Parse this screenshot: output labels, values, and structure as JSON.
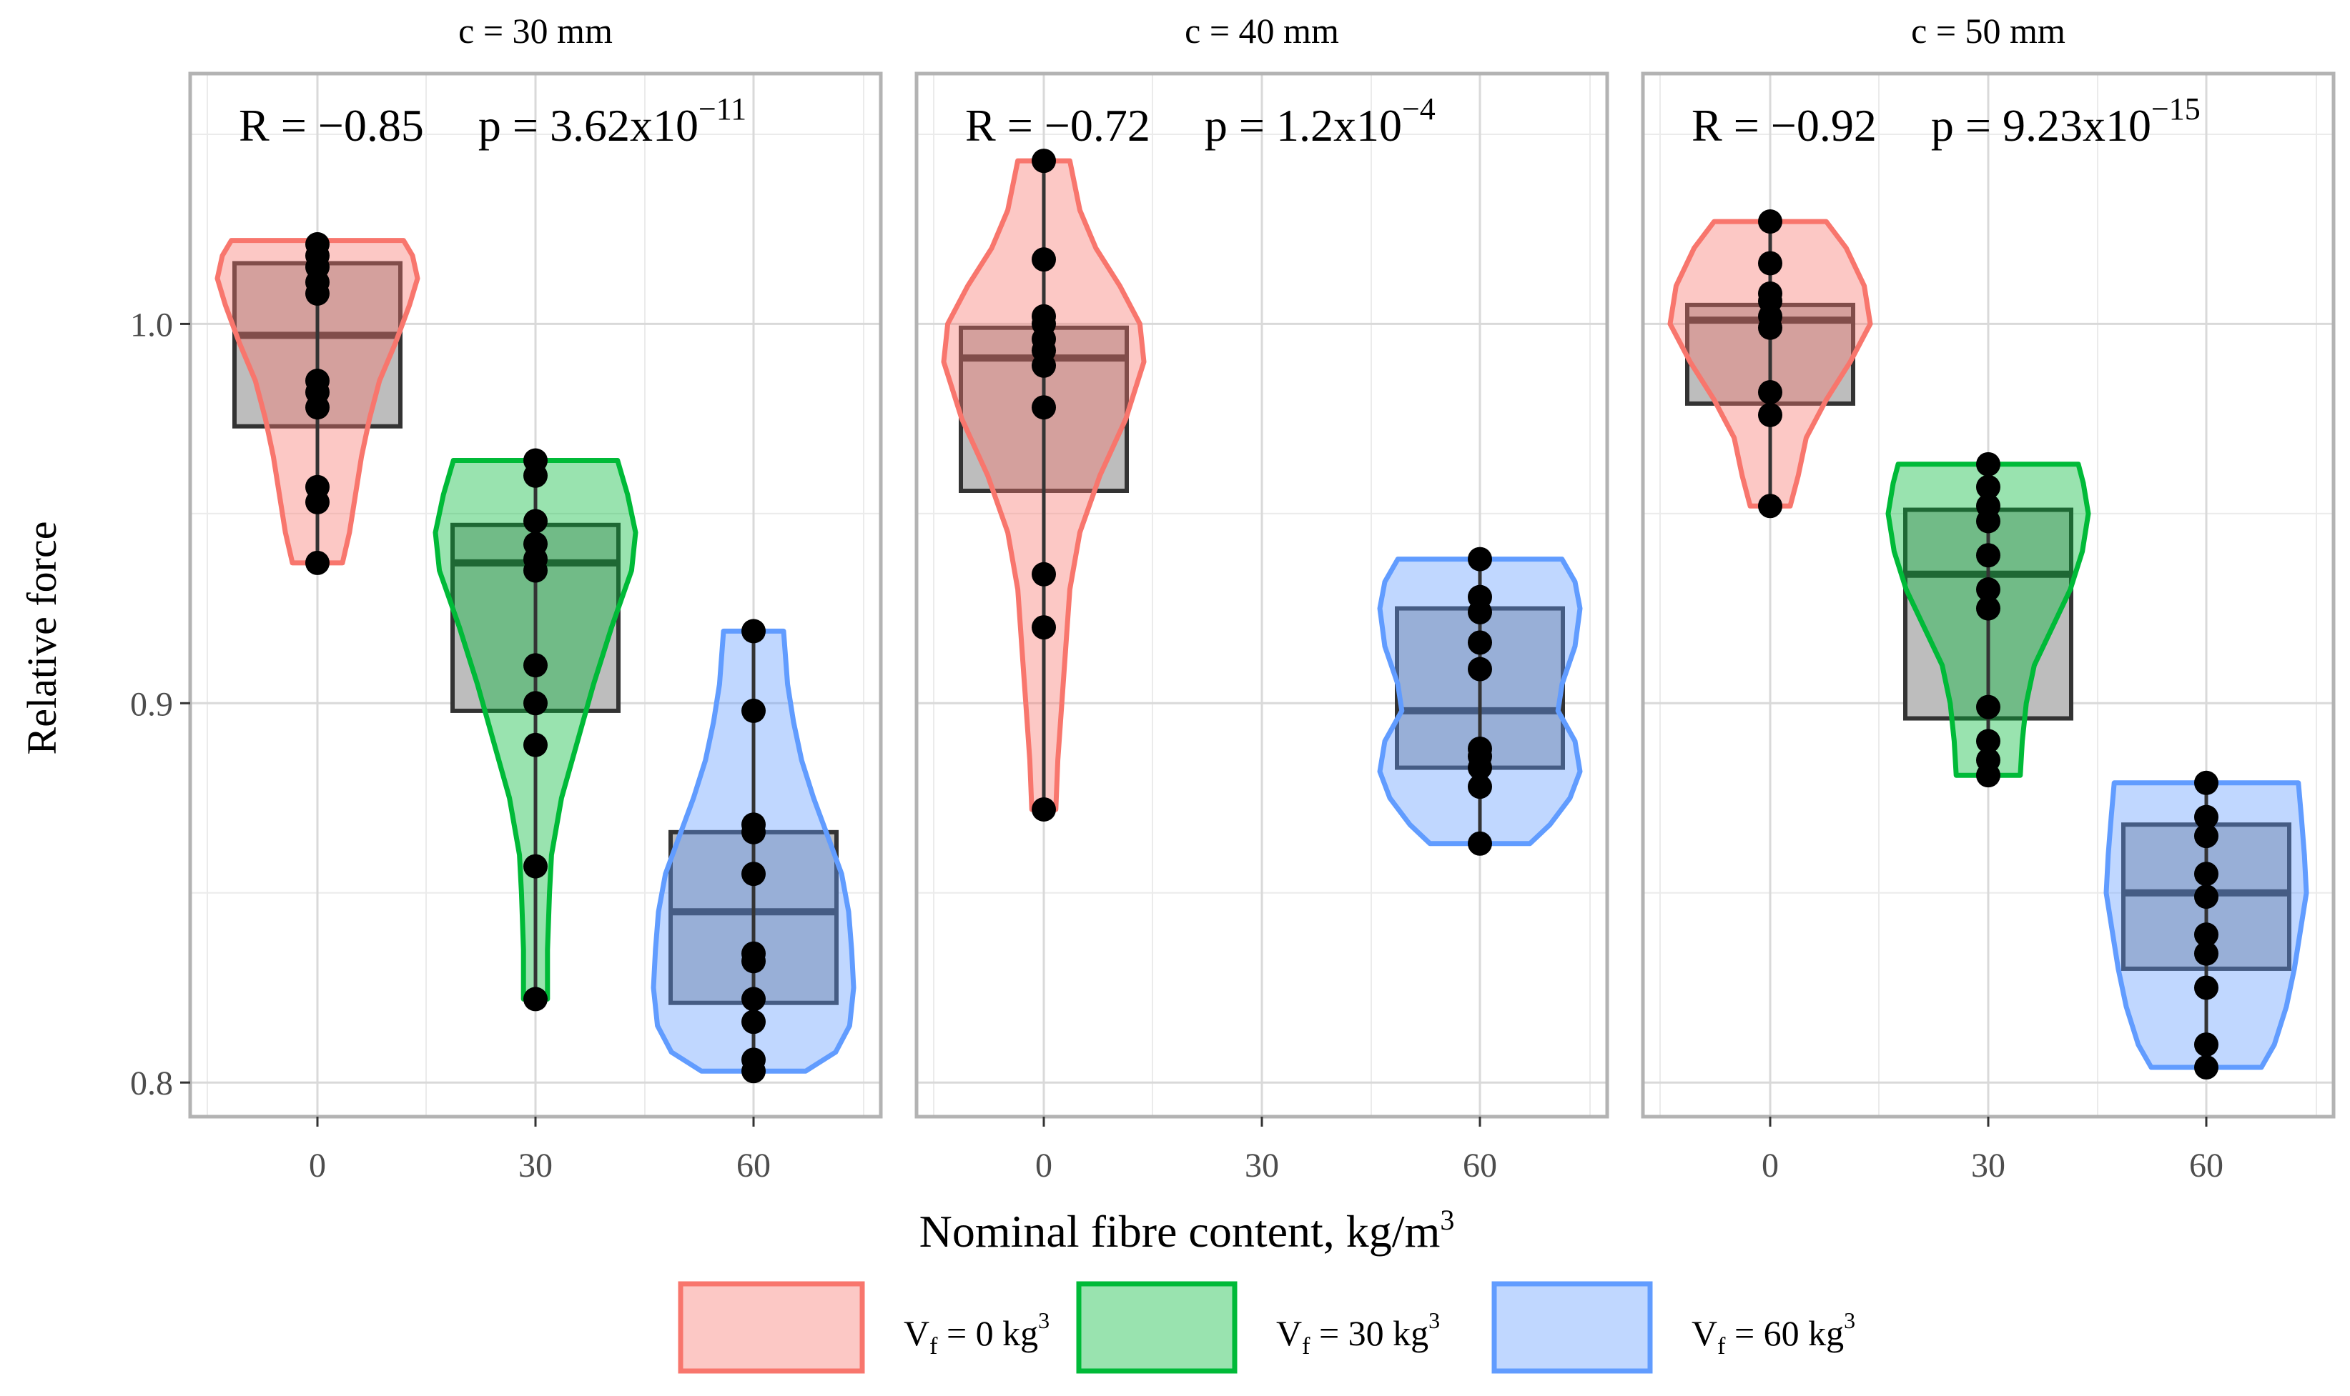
{
  "chart_data": {
    "type": "violin-box-dot",
    "x_title": "Nominal fibre content, kg/m",
    "x_title_sup": "3",
    "y_title": "Relative force",
    "ylim": [
      0.791,
      1.066
    ],
    "y_ticks": [
      0.8,
      0.9,
      1.0
    ],
    "y_tick_labels": [
      "0.8",
      "0.9",
      "1.0"
    ],
    "y_minor": [
      0.85,
      0.95,
      1.05
    ],
    "x_categories": [
      "0",
      "30",
      "60"
    ],
    "legend": [
      {
        "key": "0",
        "label_main": "V",
        "label_sub": "f",
        "label_rest": " = 0 kg",
        "label_sup": "3",
        "stroke": "#F8766D",
        "fill": "#F8766D"
      },
      {
        "key": "30",
        "label_main": "V",
        "label_sub": "f",
        "label_rest": " = 30 kg",
        "label_sup": "3",
        "stroke": "#00BA38",
        "fill": "#00BA38"
      },
      {
        "key": "60",
        "label_main": "V",
        "label_sub": "f",
        "label_rest": " = 60 kg",
        "label_sup": "3",
        "stroke": "#619CFF",
        "fill": "#619CFF"
      }
    ],
    "panels": [
      {
        "strip": "c = 30 mm",
        "r_text": "R = −0.85",
        "p_text": "p = 3.62x10",
        "p_exp": "−11",
        "groups": [
          {
            "x": "0",
            "box": {
              "q1": 0.973,
              "median": 0.997,
              "q3": 1.016
            },
            "violin": {
              "min": 0.937,
              "max": 1.022,
              "profile": [
                [
                  0.937,
                  0.25
                ],
                [
                  0.945,
                  0.32
                ],
                [
                  0.955,
                  0.38
                ],
                [
                  0.965,
                  0.44
                ],
                [
                  0.975,
                  0.52
                ],
                [
                  0.985,
                  0.62
                ],
                [
                  0.995,
                  0.78
                ],
                [
                  1.005,
                  0.92
                ],
                [
                  1.012,
                  1.0
                ],
                [
                  1.018,
                  0.95
                ],
                [
                  1.022,
                  0.86
                ]
              ]
            },
            "points": [
              0.937,
              0.953,
              0.957,
              0.978,
              0.982,
              0.985,
              1.008,
              1.011,
              1.015,
              1.018,
              1.021
            ]
          },
          {
            "x": "30",
            "box": {
              "q1": 0.898,
              "median": 0.937,
              "q3": 0.947
            },
            "violin": {
              "min": 0.822,
              "max": 0.964,
              "profile": [
                [
                  0.822,
                  0.12
                ],
                [
                  0.835,
                  0.12
                ],
                [
                  0.85,
                  0.14
                ],
                [
                  0.86,
                  0.16
                ],
                [
                  0.875,
                  0.26
                ],
                [
                  0.89,
                  0.42
                ],
                [
                  0.905,
                  0.58
                ],
                [
                  0.92,
                  0.76
                ],
                [
                  0.935,
                  0.96
                ],
                [
                  0.945,
                  1.0
                ],
                [
                  0.955,
                  0.92
                ],
                [
                  0.964,
                  0.82
                ]
              ]
            },
            "points": [
              0.822,
              0.857,
              0.889,
              0.9,
              0.91,
              0.935,
              0.938,
              0.942,
              0.948,
              0.96,
              0.964
            ]
          },
          {
            "x": "60",
            "box": {
              "q1": 0.821,
              "median": 0.845,
              "q3": 0.866
            },
            "violin": {
              "min": 0.803,
              "max": 0.919,
              "profile": [
                [
                  0.803,
                  0.52
                ],
                [
                  0.808,
                  0.82
                ],
                [
                  0.815,
                  0.96
                ],
                [
                  0.825,
                  1.0
                ],
                [
                  0.835,
                  0.98
                ],
                [
                  0.845,
                  0.95
                ],
                [
                  0.855,
                  0.88
                ],
                [
                  0.865,
                  0.74
                ],
                [
                  0.875,
                  0.6
                ],
                [
                  0.885,
                  0.48
                ],
                [
                  0.895,
                  0.4
                ],
                [
                  0.905,
                  0.34
                ],
                [
                  0.919,
                  0.3
                ]
              ]
            },
            "points": [
              0.803,
              0.806,
              0.816,
              0.822,
              0.832,
              0.834,
              0.855,
              0.866,
              0.868,
              0.898,
              0.919
            ]
          }
        ]
      },
      {
        "strip": "c = 40 mm",
        "r_text": "R = −0.72",
        "p_text": "p = 1.2x10",
        "p_exp": "−4",
        "groups": [
          {
            "x": "0",
            "box": {
              "q1": 0.956,
              "median": 0.991,
              "q3": 0.999
            },
            "violin": {
              "min": 0.872,
              "max": 1.043,
              "profile": [
                [
                  0.872,
                  0.12
                ],
                [
                  0.885,
                  0.14
                ],
                [
                  0.9,
                  0.18
                ],
                [
                  0.915,
                  0.22
                ],
                [
                  0.93,
                  0.26
                ],
                [
                  0.945,
                  0.36
                ],
                [
                  0.96,
                  0.56
                ],
                [
                  0.975,
                  0.82
                ],
                [
                  0.99,
                  1.0
                ],
                [
                  1.0,
                  0.96
                ],
                [
                  1.01,
                  0.76
                ],
                [
                  1.02,
                  0.52
                ],
                [
                  1.03,
                  0.36
                ],
                [
                  1.043,
                  0.26
                ]
              ]
            },
            "points": [
              0.872,
              0.92,
              0.934,
              0.978,
              0.989,
              0.993,
              0.996,
              1.0,
              1.002,
              1.017,
              1.043
            ]
          },
          {
            "x": "60",
            "box": {
              "q1": 0.883,
              "median": 0.898,
              "q3": 0.925
            },
            "violin": {
              "min": 0.863,
              "max": 0.938,
              "profile": [
                [
                  0.863,
                  0.5
                ],
                [
                  0.868,
                  0.7
                ],
                [
                  0.875,
                  0.9
                ],
                [
                  0.882,
                  1.0
                ],
                [
                  0.89,
                  0.95
                ],
                [
                  0.898,
                  0.78
                ],
                [
                  0.905,
                  0.82
                ],
                [
                  0.915,
                  0.95
                ],
                [
                  0.925,
                  1.0
                ],
                [
                  0.932,
                  0.95
                ],
                [
                  0.938,
                  0.82
                ]
              ]
            },
            "points": [
              0.863,
              0.878,
              0.883,
              0.886,
              0.888,
              0.909,
              0.916,
              0.924,
              0.928,
              0.938
            ]
          }
        ]
      },
      {
        "strip": "c = 50 mm",
        "r_text": "R = −0.92",
        "p_text": "p = 9.23x10",
        "p_exp": "−15",
        "groups": [
          {
            "x": "0",
            "box": {
              "q1": 0.979,
              "median": 1.001,
              "q3": 1.005
            },
            "violin": {
              "min": 0.952,
              "max": 1.027,
              "profile": [
                [
                  0.952,
                  0.2
                ],
                [
                  0.96,
                  0.28
                ],
                [
                  0.97,
                  0.36
                ],
                [
                  0.98,
                  0.56
                ],
                [
                  0.99,
                  0.8
                ],
                [
                  1.0,
                  1.0
                ],
                [
                  1.01,
                  0.94
                ],
                [
                  1.02,
                  0.76
                ],
                [
                  1.027,
                  0.56
                ]
              ]
            },
            "points": [
              0.952,
              0.976,
              0.982,
              0.999,
              1.002,
              1.006,
              1.008,
              1.016,
              1.027
            ]
          },
          {
            "x": "30",
            "box": {
              "q1": 0.896,
              "median": 0.934,
              "q3": 0.951
            },
            "violin": {
              "min": 0.881,
              "max": 0.963,
              "profile": [
                [
                  0.881,
                  0.32
                ],
                [
                  0.89,
                  0.34
                ],
                [
                  0.9,
                  0.38
                ],
                [
                  0.91,
                  0.46
                ],
                [
                  0.92,
                  0.64
                ],
                [
                  0.93,
                  0.82
                ],
                [
                  0.94,
                  0.94
                ],
                [
                  0.95,
                  1.0
                ],
                [
                  0.958,
                  0.95
                ],
                [
                  0.963,
                  0.9
                ]
              ]
            },
            "points": [
              0.881,
              0.885,
              0.89,
              0.899,
              0.925,
              0.93,
              0.939,
              0.948,
              0.952,
              0.957,
              0.963
            ]
          },
          {
            "x": "60",
            "box": {
              "q1": 0.83,
              "median": 0.85,
              "q3": 0.868
            },
            "violin": {
              "min": 0.804,
              "max": 0.879,
              "profile": [
                [
                  0.804,
                  0.55
                ],
                [
                  0.81,
                  0.68
                ],
                [
                  0.82,
                  0.8
                ],
                [
                  0.83,
                  0.88
                ],
                [
                  0.84,
                  0.94
                ],
                [
                  0.85,
                  1.0
                ],
                [
                  0.86,
                  0.98
                ],
                [
                  0.87,
                  0.95
                ],
                [
                  0.879,
                  0.92
                ]
              ]
            },
            "points": [
              0.804,
              0.81,
              0.825,
              0.834,
              0.839,
              0.849,
              0.855,
              0.865,
              0.87,
              0.879
            ]
          }
        ]
      }
    ]
  }
}
